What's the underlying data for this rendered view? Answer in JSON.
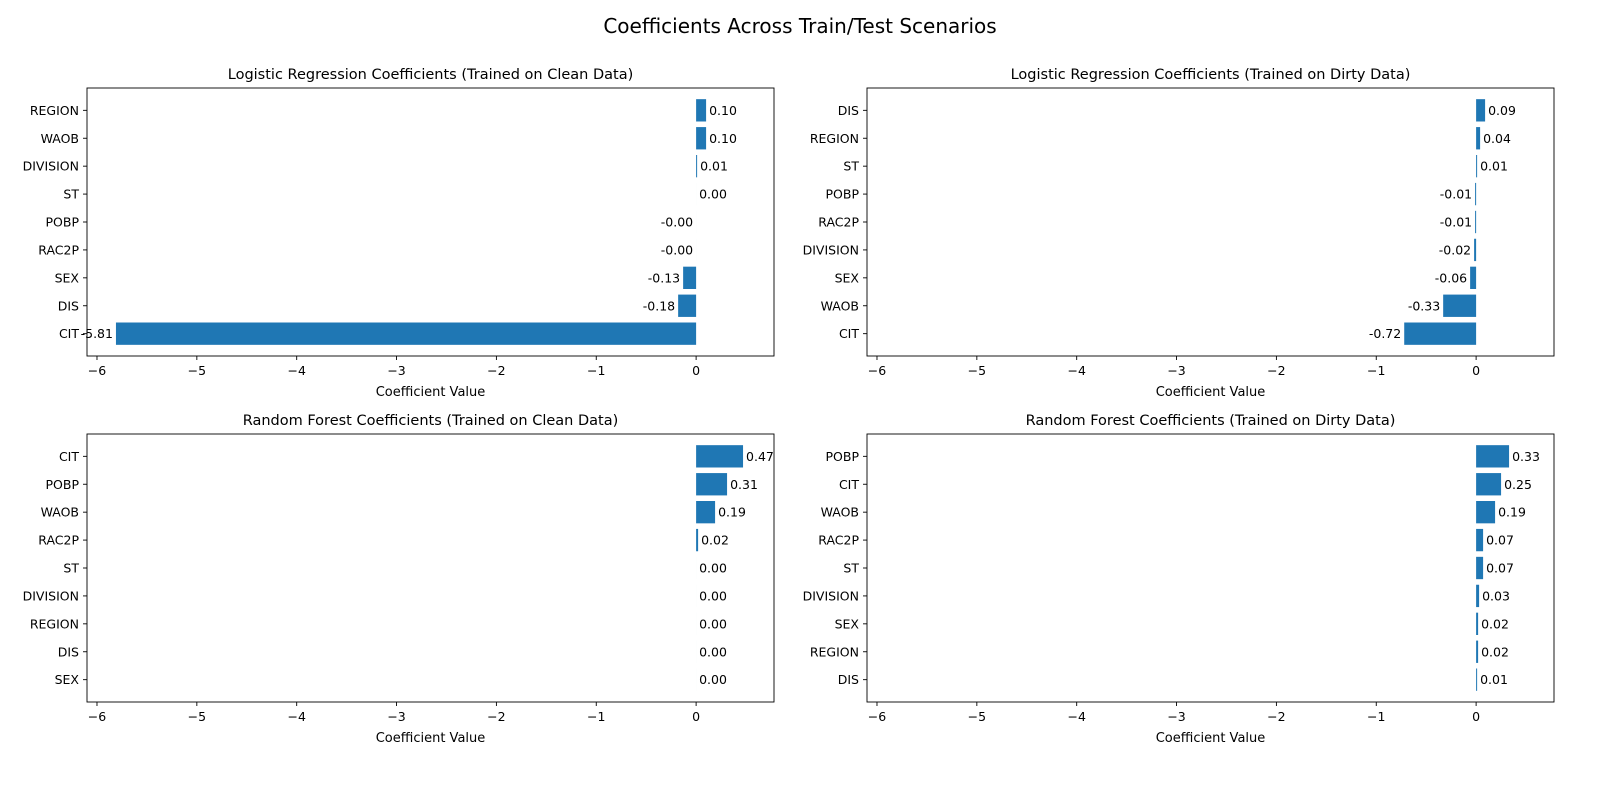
{
  "figure": {
    "title": "Coefficients Across Train/Test Scenarios",
    "bar_color": "#1f77b4"
  },
  "chart_data": [
    {
      "type": "bar",
      "orientation": "horizontal",
      "title": "Logistic Regression Coefficients (Trained on Clean Data)",
      "xlabel": "Coefficient Value",
      "ylabel": "",
      "xlim": [
        -6.1,
        0.78
      ],
      "xticks": [
        -6,
        -5,
        -4,
        -3,
        -2,
        -1,
        0
      ],
      "xtick_labels": [
        "−6",
        "−5",
        "−4",
        "−3",
        "−2",
        "−1",
        "0"
      ],
      "categories": [
        "REGION",
        "WAOB",
        "DIVISION",
        "ST",
        "POBP",
        "RAC2P",
        "SEX",
        "DIS",
        "CIT"
      ],
      "values": [
        0.1,
        0.1,
        0.01,
        0.0,
        -0.0,
        -0.0,
        -0.13,
        -0.18,
        -5.81
      ],
      "value_labels": [
        "0.10",
        "0.10",
        "0.01",
        "0.00",
        "-0.00",
        "-0.00",
        "-0.13",
        "-0.18",
        "-5.81"
      ]
    },
    {
      "type": "bar",
      "orientation": "horizontal",
      "title": "Logistic Regression Coefficients (Trained on Dirty Data)",
      "xlabel": "Coefficient Value",
      "ylabel": "",
      "xlim": [
        -6.1,
        0.78
      ],
      "xticks": [
        -6,
        -5,
        -4,
        -3,
        -2,
        -1,
        0
      ],
      "xtick_labels": [
        "−6",
        "−5",
        "−4",
        "−3",
        "−2",
        "−1",
        "0"
      ],
      "categories": [
        "DIS",
        "REGION",
        "ST",
        "POBP",
        "RAC2P",
        "DIVISION",
        "SEX",
        "WAOB",
        "CIT"
      ],
      "values": [
        0.09,
        0.04,
        0.01,
        -0.01,
        -0.01,
        -0.02,
        -0.06,
        -0.33,
        -0.72
      ],
      "value_labels": [
        "0.09",
        "0.04",
        "0.01",
        "-0.01",
        "-0.01",
        "-0.02",
        "-0.06",
        "-0.33",
        "-0.72"
      ]
    },
    {
      "type": "bar",
      "orientation": "horizontal",
      "title": "Random Forest Coefficients (Trained on Clean Data)",
      "xlabel": "Coefficient Value",
      "ylabel": "",
      "xlim": [
        -6.1,
        0.78
      ],
      "xticks": [
        -6,
        -5,
        -4,
        -3,
        -2,
        -1,
        0
      ],
      "xtick_labels": [
        "−6",
        "−5",
        "−4",
        "−3",
        "−2",
        "−1",
        "0"
      ],
      "categories": [
        "CIT",
        "POBP",
        "WAOB",
        "RAC2P",
        "ST",
        "DIVISION",
        "REGION",
        "DIS",
        "SEX"
      ],
      "values": [
        0.47,
        0.31,
        0.19,
        0.02,
        0.0,
        0.0,
        0.0,
        0.0,
        0.0
      ],
      "value_labels": [
        "0.47",
        "0.31",
        "0.19",
        "0.02",
        "0.00",
        "0.00",
        "0.00",
        "0.00",
        "0.00"
      ]
    },
    {
      "type": "bar",
      "orientation": "horizontal",
      "title": "Random Forest Coefficients (Trained on Dirty Data)",
      "xlabel": "Coefficient Value",
      "ylabel": "",
      "xlim": [
        -6.1,
        0.78
      ],
      "xticks": [
        -6,
        -5,
        -4,
        -3,
        -2,
        -1,
        0
      ],
      "xtick_labels": [
        "−6",
        "−5",
        "−4",
        "−3",
        "−2",
        "−1",
        "0"
      ],
      "categories": [
        "POBP",
        "CIT",
        "WAOB",
        "RAC2P",
        "ST",
        "DIVISION",
        "SEX",
        "REGION",
        "DIS"
      ],
      "values": [
        0.33,
        0.25,
        0.19,
        0.07,
        0.07,
        0.03,
        0.02,
        0.02,
        0.01
      ],
      "value_labels": [
        "0.33",
        "0.25",
        "0.19",
        "0.07",
        "0.07",
        "0.03",
        "0.02",
        "0.02",
        "0.01"
      ]
    }
  ]
}
